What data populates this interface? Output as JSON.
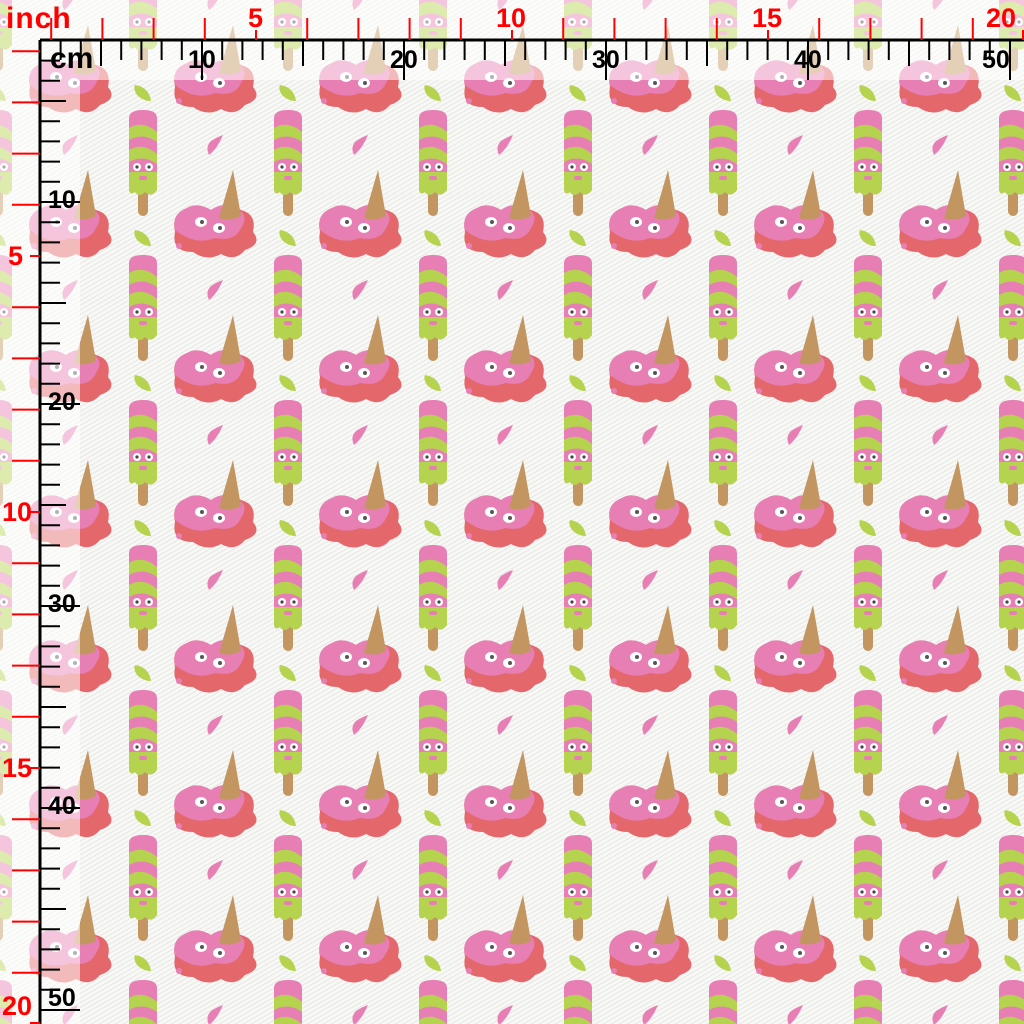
{
  "ruler": {
    "inch_unit": "inch",
    "cm_unit": "cm",
    "top_inch_labels": [
      "5",
      "10",
      "15",
      "20"
    ],
    "top_cm_labels": [
      "10",
      "20",
      "30",
      "40",
      "50"
    ],
    "left_inch_labels": [
      "5",
      "10",
      "15",
      "20"
    ],
    "left_cm_labels": [
      "10",
      "20",
      "30",
      "40",
      "50"
    ],
    "inch_color": "#ff0000",
    "cm_color": "#000000"
  },
  "fabric": {
    "motifs": [
      "striped-popsicle",
      "melted-ice-cream-puddle",
      "pink-drop",
      "green-drop"
    ],
    "colors": {
      "pink": "#e77fb4",
      "red": "#e4676b",
      "green": "#b5d34f",
      "cone": "#c39661",
      "background": "#f7f7f5"
    }
  }
}
